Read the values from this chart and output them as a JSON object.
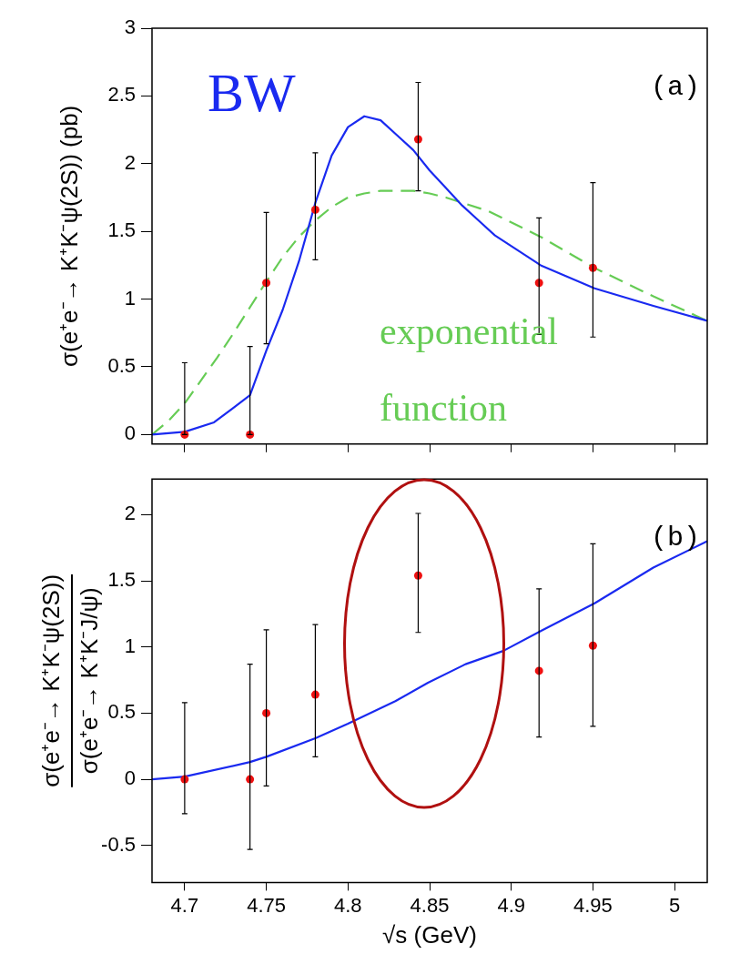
{
  "chart_data": [
    {
      "type": "scatter",
      "ylabel": "σ(e⁺e⁻→ K⁺K⁻ψ(2S)) (pb)",
      "xlim": [
        4.68,
        5.02
      ],
      "ylim": [
        -0.07,
        3
      ],
      "xticks": [
        4.7,
        4.75,
        4.8,
        4.85,
        4.9,
        4.95,
        5
      ],
      "yticks": [
        0,
        0.5,
        1,
        1.5,
        2,
        2.5,
        3
      ],
      "tick_labels": "y",
      "grid": false,
      "legend": false,
      "annotations": [
        "(a)"
      ],
      "series": [
        {
          "type": "scatter",
          "marker": "circle",
          "color": "#ee1111",
          "x": [
            4.7,
            4.74,
            4.75,
            4.78,
            4.843,
            4.917,
            4.95
          ],
          "values": [
            0,
            0,
            1.12,
            1.66,
            2.18,
            1.12,
            1.23
          ],
          "errors": [
            [
              0,
              0.53
            ],
            [
              0,
              0.65
            ],
            [
              0.67,
              1.64
            ],
            [
              1.29,
              2.08
            ],
            [
              1.8,
              2.6
            ],
            [
              0.74,
              1.6
            ],
            [
              0.72,
              1.86
            ]
          ]
        },
        {
          "type": "line",
          "name": "BW",
          "color": "#1a2af0",
          "x": [
            4.68,
            4.7,
            4.718,
            4.74,
            4.75,
            4.76,
            4.77,
            4.78,
            4.79,
            4.8,
            4.81,
            4.82,
            4.83,
            4.84,
            4.85,
            4.86,
            4.87,
            4.88,
            4.89,
            4.918,
            4.951,
            4.987,
            5.02
          ],
          "values": [
            0,
            0.02,
            0.09,
            0.29,
            0.62,
            0.92,
            1.28,
            1.71,
            2.06,
            2.27,
            2.35,
            2.32,
            2.21,
            2.1,
            1.95,
            1.82,
            1.69,
            1.58,
            1.47,
            1.25,
            1.08,
            0.95,
            0.84
          ]
        },
        {
          "type": "line",
          "name": "exponential function",
          "color": "#66cc55",
          "line_style": "dashed",
          "x": [
            4.68,
            4.69,
            4.7,
            4.71,
            4.72,
            4.73,
            4.74,
            4.75,
            4.76,
            4.77,
            4.78,
            4.79,
            4.8,
            4.81,
            4.82,
            4.83,
            4.84,
            4.85,
            4.86,
            4.886,
            4.918,
            4.951,
            4.987,
            5.02
          ],
          "values": [
            0,
            0.1,
            0.23,
            0.4,
            0.57,
            0.75,
            0.94,
            1.13,
            1.31,
            1.46,
            1.58,
            1.68,
            1.75,
            1.78,
            1.8,
            1.8,
            1.8,
            1.78,
            1.75,
            1.65,
            1.46,
            1.23,
            1.02,
            0.84
          ]
        }
      ]
    },
    {
      "type": "scatter",
      "xlabel": "√s (GeV)",
      "ylabel": "σ(e⁺e⁻→ K⁺K⁻ψ(2S)) σ(e⁺e⁻→ K⁺K⁻J/ψ)",
      "xlim": [
        4.68,
        5.02
      ],
      "ylim": [
        -0.78,
        2.27
      ],
      "xticks": [
        4.7,
        4.75,
        4.8,
        4.85,
        4.9,
        4.95,
        5
      ],
      "yticks": [
        -0.5,
        0,
        0.5,
        1,
        1.5,
        2
      ],
      "grid": false,
      "legend": false,
      "annotations": [
        "(b)"
      ],
      "series": [
        {
          "type": "scatter",
          "marker": "circle",
          "color": "#ee1111",
          "x": [
            4.7,
            4.74,
            4.75,
            4.78,
            4.843,
            4.917,
            4.95
          ],
          "values": [
            0,
            0,
            0.5,
            0.64,
            1.54,
            0.82,
            1.01
          ],
          "errors": [
            [
              -0.26,
              0.58
            ],
            [
              -0.53,
              0.87
            ],
            [
              -0.05,
              1.13
            ],
            [
              0.17,
              1.17
            ],
            [
              1.11,
              2.01
            ],
            [
              0.32,
              1.44
            ],
            [
              0.4,
              1.78
            ]
          ]
        },
        {
          "type": "line",
          "color": "#1a2af0",
          "x": [
            4.68,
            4.7,
            4.74,
            4.75,
            4.78,
            4.8,
            4.829,
            4.849,
            4.872,
            4.895,
            4.918,
            4.951,
            4.987,
            5.02
          ],
          "values": [
            0,
            0.02,
            0.13,
            0.17,
            0.31,
            0.42,
            0.59,
            0.73,
            0.87,
            0.97,
            1.12,
            1.33,
            1.6,
            1.8
          ]
        }
      ]
    }
  ]
}
